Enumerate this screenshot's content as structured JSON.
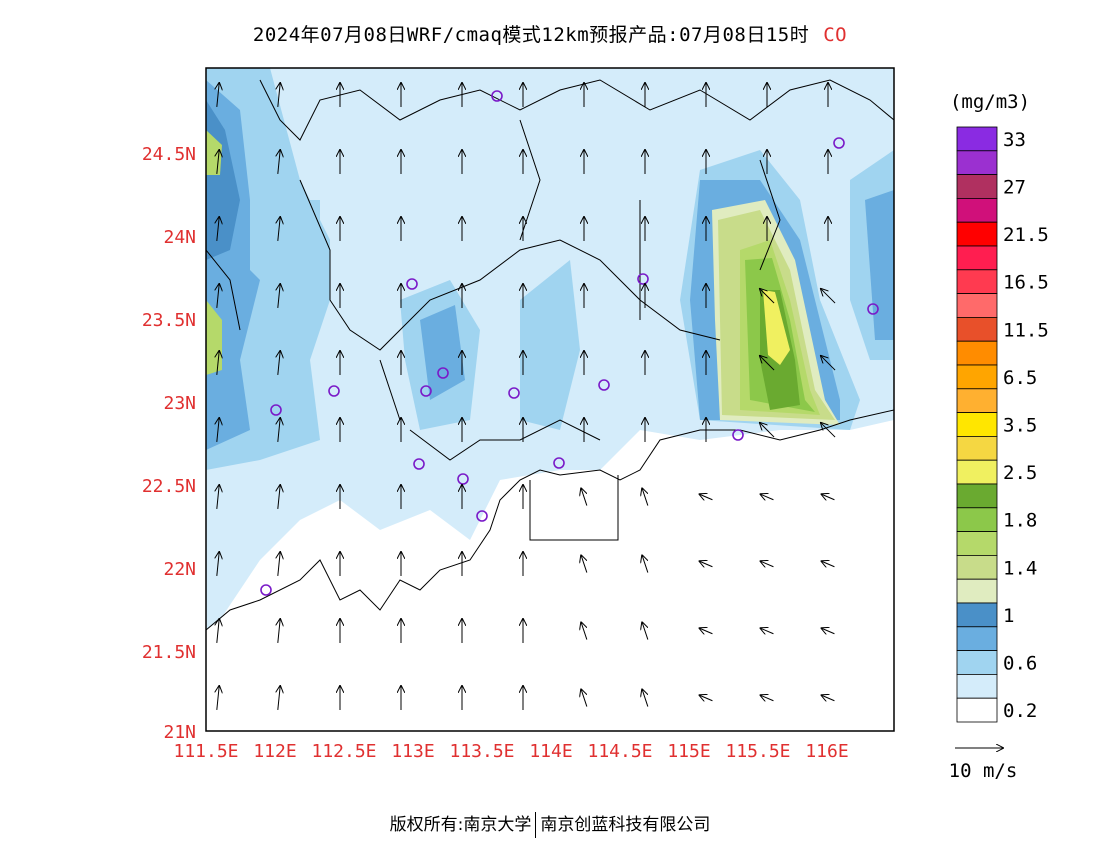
{
  "title": {
    "main": "2024年07月08日WRF/cmaq模式12km预报产品:07月08日15时",
    "species": "CO"
  },
  "colorbar": {
    "unit": "(mg/m3)",
    "levels": [
      {
        "label": "33",
        "color": "#8a2be2"
      },
      {
        "label": "",
        "color": "#9b30d0"
      },
      {
        "label": "27",
        "color": "#b03060"
      },
      {
        "label": "",
        "color": "#d0107a"
      },
      {
        "label": "21.5",
        "color": "#ff0000"
      },
      {
        "label": "",
        "color": "#ff1e50"
      },
      {
        "label": "16.5",
        "color": "#ff3a50"
      },
      {
        "label": "",
        "color": "#ff6a6a"
      },
      {
        "label": "11.5",
        "color": "#e8502a"
      },
      {
        "label": "",
        "color": "#ff8c00"
      },
      {
        "label": "6.5",
        "color": "#ffa500"
      },
      {
        "label": "",
        "color": "#ffb030"
      },
      {
        "label": "3.5",
        "color": "#ffe600"
      },
      {
        "label": "",
        "color": "#f5d742"
      },
      {
        "label": "2.5",
        "color": "#f0f060"
      },
      {
        "label": "",
        "color": "#6aaa30"
      },
      {
        "label": "1.8",
        "color": "#8cc84a"
      },
      {
        "label": "",
        "color": "#b5d96a"
      },
      {
        "label": "1.4",
        "color": "#c8dc8a"
      },
      {
        "label": "",
        "color": "#e0ecc0"
      },
      {
        "label": "1",
        "color": "#4a90c8"
      },
      {
        "label": "",
        "color": "#6aaee0"
      },
      {
        "label": "0.6",
        "color": "#a0d4f0"
      },
      {
        "label": "",
        "color": "#d4ecfa"
      },
      {
        "label": "0.2",
        "color": "#ffffff"
      }
    ]
  },
  "wind_reference": {
    "label": "10 m/s"
  },
  "axes": {
    "lat_labels": [
      "24.5N",
      "24N",
      "23.5N",
      "23N",
      "22.5N",
      "22N",
      "21.5N",
      "21N"
    ],
    "lon_labels": [
      "111.5E",
      "112E",
      "112.5E",
      "113E",
      "113.5E",
      "114E",
      "114.5E",
      "115E",
      "115.5E",
      "116E"
    ]
  },
  "footer": {
    "left": "版权所有:南京大学",
    "right": "南京创蓝科技有限公司"
  }
}
